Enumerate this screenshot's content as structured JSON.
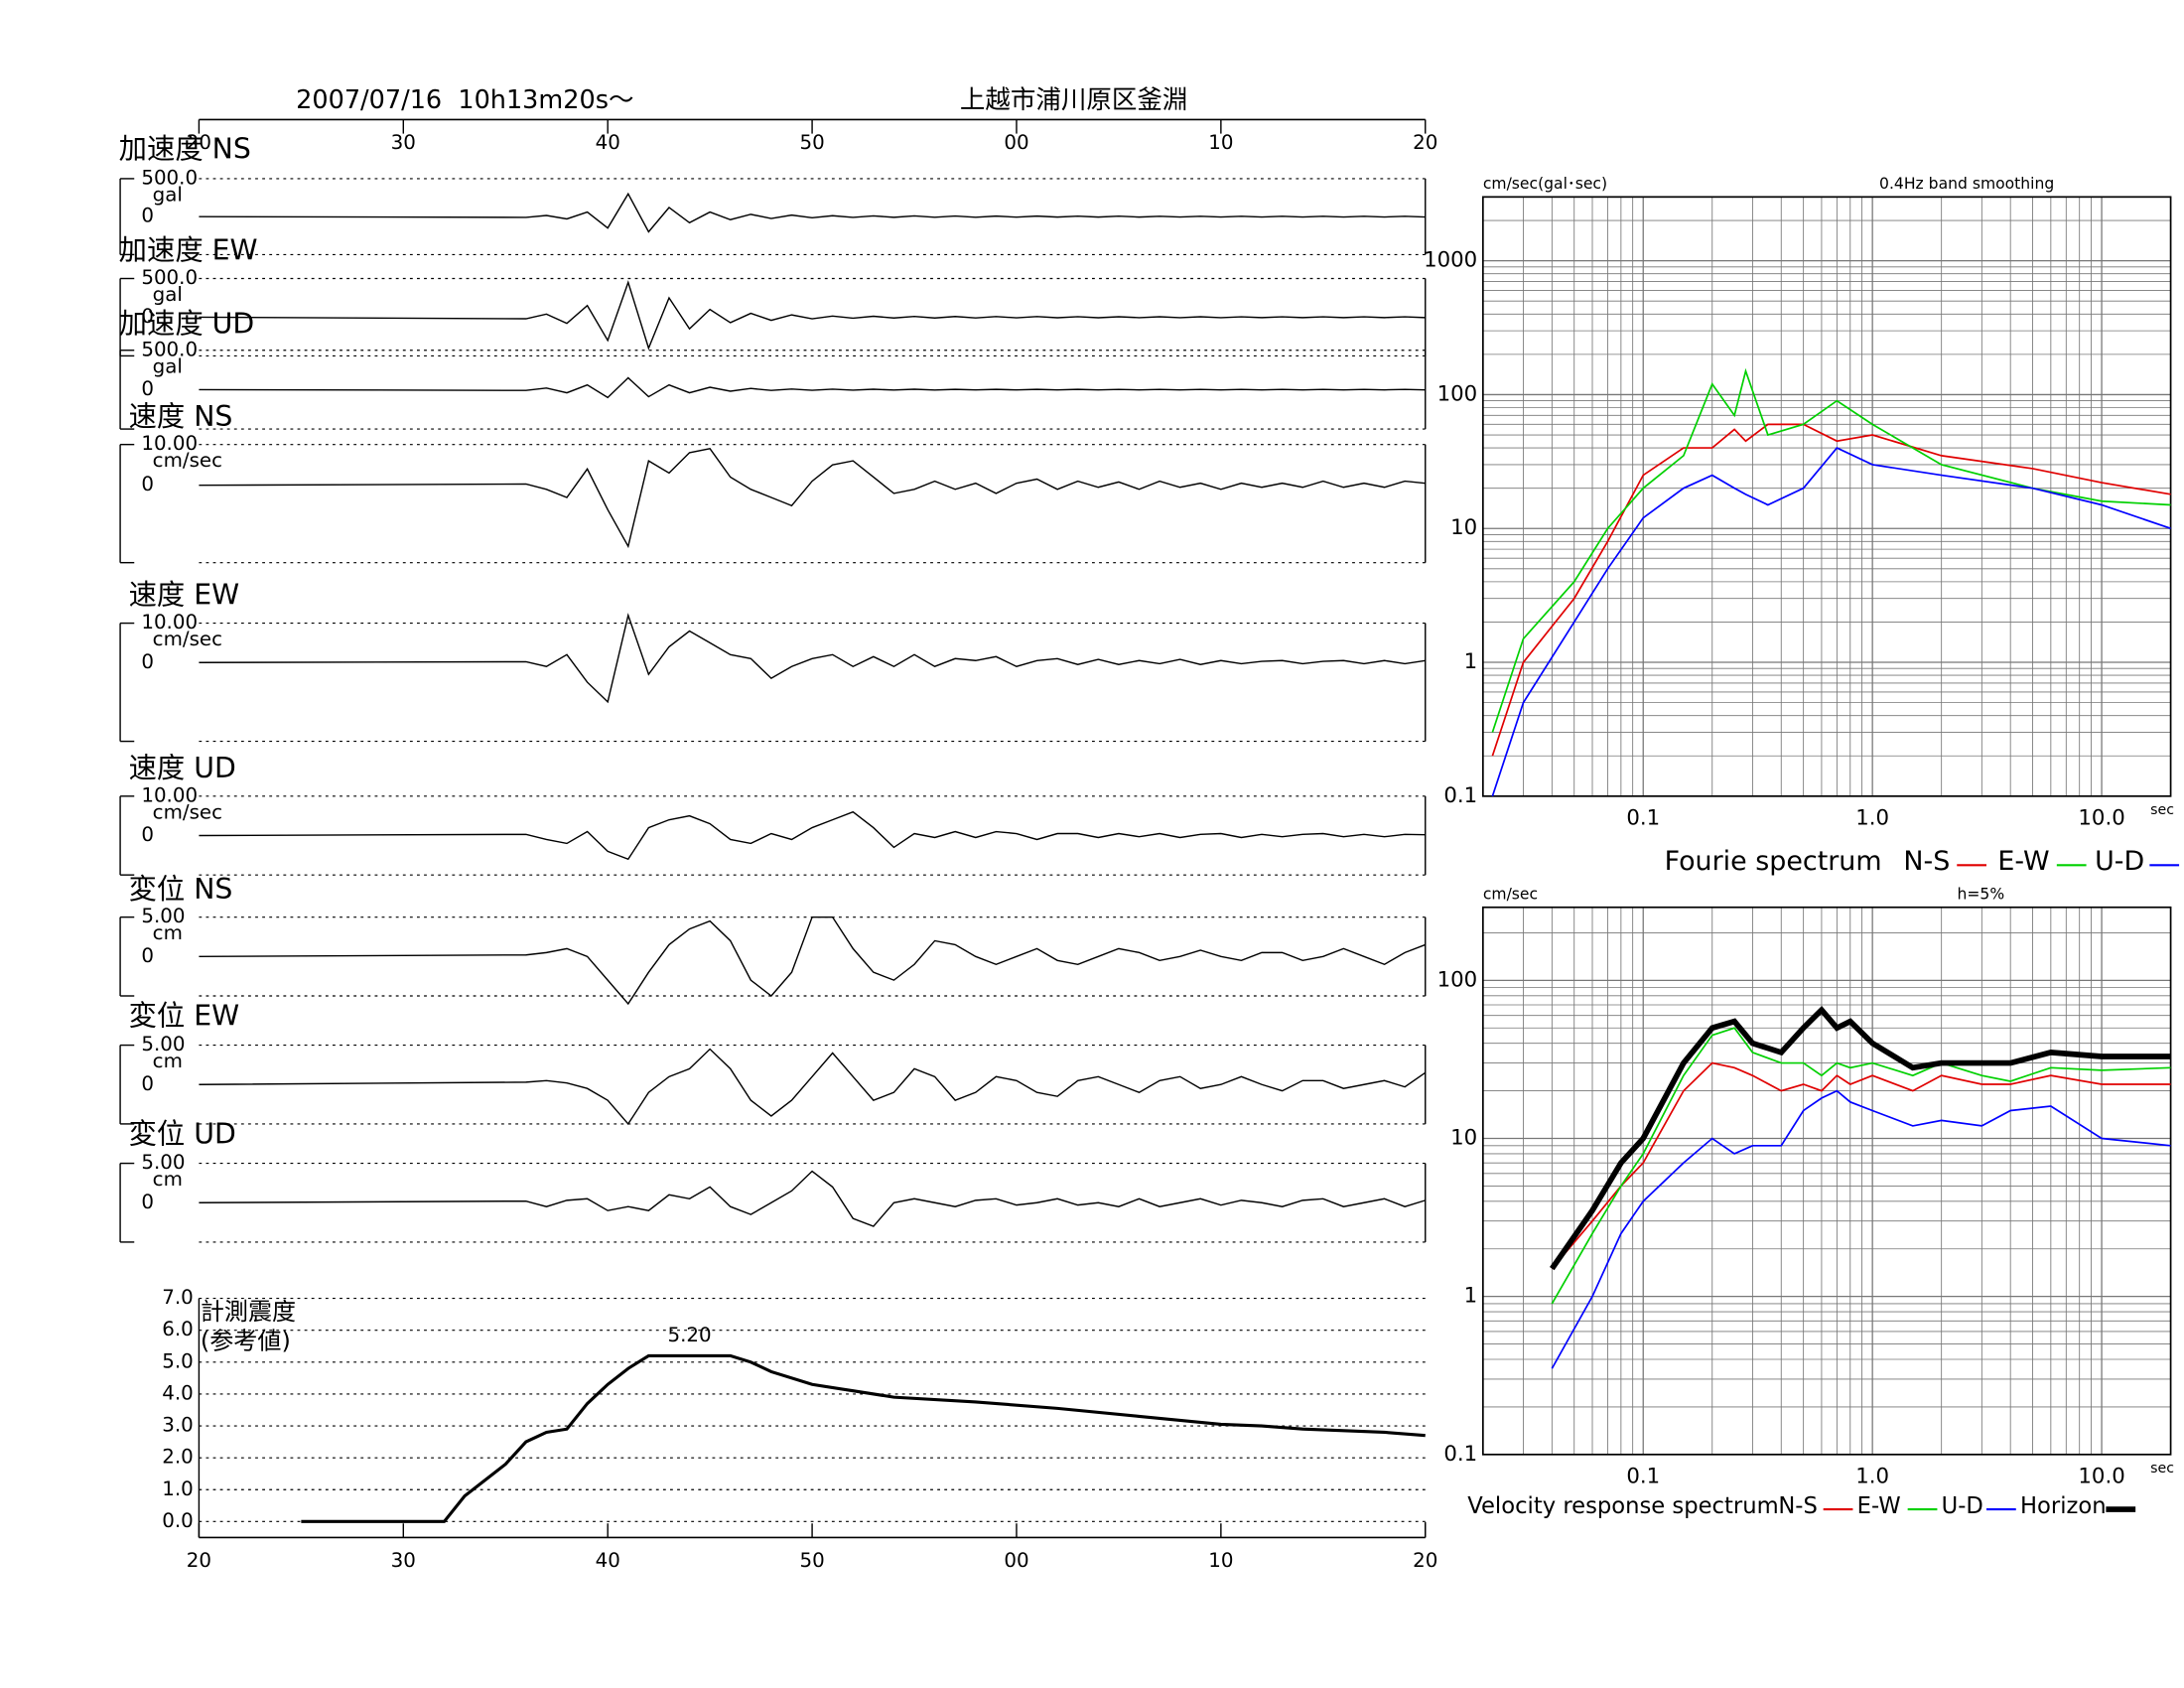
{
  "header": {
    "date": "2007/07/16  10h13m20s〜",
    "station": "上越市浦川原区釜淵"
  },
  "chart_data": [
    {
      "type": "line",
      "title": "加速度 NS",
      "unit": "gal",
      "ylim": [
        -500,
        500
      ],
      "yticks": [
        {
          "value": 500,
          "label": "500.0"
        },
        0
      ],
      "x": [
        0,
        16,
        17,
        18,
        19,
        20,
        21,
        22,
        23,
        24,
        25,
        26,
        27,
        28,
        29,
        30,
        31,
        32,
        33,
        34,
        35,
        36,
        37,
        38,
        39,
        40,
        41,
        42,
        43,
        44,
        45,
        46,
        47,
        48,
        49,
        50,
        51,
        52,
        53,
        54,
        55,
        56,
        57,
        58,
        59,
        60
      ],
      "values": [
        0,
        -10,
        15,
        -30,
        60,
        -150,
        300,
        -200,
        120,
        -80,
        60,
        -40,
        30,
        -25,
        20,
        -15,
        12,
        -10,
        10,
        -9,
        9,
        -8,
        8,
        -8,
        7,
        -7,
        7,
        -6,
        6,
        -6,
        6,
        -6,
        5,
        -5,
        5,
        -5,
        5,
        -5,
        5,
        -5,
        5,
        -5,
        5,
        -5,
        5,
        -5
      ]
    },
    {
      "type": "line",
      "title": "加速度 EW",
      "unit": "gal",
      "ylim": [
        -500,
        500
      ],
      "yticks": [
        {
          "value": 500,
          "label": "500.0"
        },
        0
      ],
      "x": [
        0,
        16,
        17,
        18,
        19,
        20,
        21,
        22,
        23,
        24,
        25,
        26,
        27,
        28,
        29,
        30,
        31,
        32,
        33,
        34,
        35,
        36,
        37,
        38,
        39,
        40,
        41,
        42,
        43,
        44,
        45,
        46,
        47,
        48,
        49,
        50,
        51,
        52,
        53,
        54,
        55,
        56,
        57,
        58,
        59,
        60
      ],
      "values": [
        0,
        -20,
        40,
        -80,
        150,
        -300,
        450,
        -400,
        250,
        -150,
        100,
        -70,
        50,
        -40,
        30,
        -20,
        15,
        -12,
        12,
        -10,
        10,
        -10,
        9,
        -9,
        8,
        -8,
        8,
        -7,
        7,
        -7,
        6,
        -6,
        6,
        -6,
        6,
        -6,
        5,
        -5,
        5,
        -5,
        5,
        -5,
        5,
        -5,
        5,
        -5
      ]
    },
    {
      "type": "line",
      "title": "加速度 UD",
      "unit": "gal",
      "ylim": [
        -500,
        500
      ],
      "yticks": [
        {
          "value": 500,
          "label": "500.0"
        },
        0
      ],
      "x": [
        0,
        16,
        17,
        18,
        19,
        20,
        21,
        22,
        23,
        24,
        25,
        26,
        27,
        28,
        29,
        30,
        31,
        32,
        33,
        34,
        35,
        36,
        37,
        38,
        39,
        40,
        41,
        42,
        43,
        44,
        45,
        46,
        47,
        48,
        49,
        50,
        51,
        52,
        53,
        54,
        55,
        56,
        57,
        58,
        59,
        60
      ],
      "values": [
        0,
        -10,
        20,
        -40,
        60,
        -100,
        150,
        -90,
        60,
        -40,
        30,
        -20,
        15,
        -10,
        8,
        -8,
        6,
        -6,
        5,
        -5,
        5,
        -5,
        4,
        -4,
        4,
        -4,
        4,
        -4,
        4,
        -4,
        3,
        -3,
        3,
        -3,
        3,
        -3,
        3,
        -3,
        3,
        -3,
        3,
        -3,
        3,
        -3,
        3,
        -3
      ]
    },
    {
      "type": "line",
      "title": "速度 NS",
      "unit": "cm/sec",
      "ylim": [
        -19,
        10
      ],
      "yticks": [
        {
          "value": 10,
          "label": "10.00"
        },
        0
      ],
      "x": [
        0,
        16,
        17,
        18,
        19,
        20,
        21,
        22,
        23,
        24,
        25,
        26,
        27,
        28,
        29,
        30,
        31,
        32,
        33,
        34,
        35,
        36,
        37,
        38,
        39,
        40,
        41,
        42,
        43,
        44,
        45,
        46,
        47,
        48,
        49,
        50,
        51,
        52,
        53,
        54,
        55,
        56,
        57,
        58,
        59,
        60
      ],
      "values": [
        0,
        0.3,
        -1,
        -3,
        4,
        -6,
        -15,
        6,
        3,
        8,
        9,
        2,
        -1,
        -3,
        -5,
        1,
        5,
        6,
        2,
        -2,
        -1,
        1,
        -1,
        0.5,
        -2,
        0.5,
        1.5,
        -1,
        1,
        -0.5,
        0.8,
        -1,
        1,
        -0.5,
        0.5,
        -1,
        0.5,
        -0.5,
        0.5,
        -0.5,
        1,
        -0.5,
        0.5,
        -0.5,
        1,
        0.5
      ]
    },
    {
      "type": "line",
      "title": "速度 EW",
      "unit": "cm/sec",
      "ylim": [
        -20,
        10
      ],
      "yticks": [
        {
          "value": 10,
          "label": "10.00"
        },
        0
      ],
      "x": [
        0,
        16,
        17,
        18,
        19,
        20,
        21,
        22,
        23,
        24,
        25,
        26,
        27,
        28,
        29,
        30,
        31,
        32,
        33,
        34,
        35,
        36,
        37,
        38,
        39,
        40,
        41,
        42,
        43,
        44,
        45,
        46,
        47,
        48,
        49,
        50,
        51,
        52,
        53,
        54,
        55,
        56,
        57,
        58,
        59,
        60
      ],
      "values": [
        0,
        0.2,
        -1,
        2,
        -5,
        -10,
        12,
        -3,
        4,
        8,
        5,
        2,
        1,
        -4,
        -1,
        1,
        2,
        -1,
        1.5,
        -1,
        2,
        -1,
        1,
        0.5,
        1.5,
        -1,
        0.5,
        1,
        -0.5,
        0.8,
        -0.5,
        0.5,
        -0.3,
        0.8,
        -0.5,
        0.5,
        -0.3,
        0.3,
        0.5,
        -0.3,
        0.3,
        0.5,
        -0.3,
        0.5,
        -0.3,
        0.5
      ]
    },
    {
      "type": "line",
      "title": "速度 UD",
      "unit": "cm/sec",
      "ylim": [
        -10,
        10
      ],
      "yticks": [
        {
          "value": 10,
          "label": "10.00"
        },
        0
      ],
      "x": [
        0,
        16,
        17,
        18,
        19,
        20,
        21,
        22,
        23,
        24,
        25,
        26,
        27,
        28,
        29,
        30,
        31,
        32,
        33,
        34,
        35,
        36,
        37,
        38,
        39,
        40,
        41,
        42,
        43,
        44,
        45,
        46,
        47,
        48,
        49,
        50,
        51,
        52,
        53,
        54,
        55,
        56,
        57,
        58,
        59,
        60
      ],
      "values": [
        0,
        0.3,
        -1,
        -2,
        1,
        -4,
        -6,
        2,
        4,
        5,
        3,
        -1,
        -2,
        0.5,
        -1,
        2,
        4,
        6,
        2,
        -3,
        0.5,
        -0.5,
        1,
        -0.5,
        1,
        0.5,
        -1,
        0.5,
        0.5,
        -0.5,
        0.5,
        -0.3,
        0.5,
        -0.5,
        0.3,
        0.5,
        -0.5,
        0.3,
        -0.3,
        0.3,
        0.5,
        -0.3,
        0.3,
        -0.3,
        0.3,
        0.2
      ]
    },
    {
      "type": "line",
      "title": "変位 NS",
      "unit": "cm",
      "ylim": [
        -5,
        5
      ],
      "yticks": [
        {
          "value": 5,
          "label": "5.00"
        },
        0
      ],
      "x": [
        0,
        16,
        17,
        18,
        19,
        20,
        21,
        22,
        23,
        24,
        25,
        26,
        27,
        28,
        29,
        30,
        31,
        32,
        33,
        34,
        35,
        36,
        37,
        38,
        39,
        40,
        41,
        42,
        43,
        44,
        45,
        46,
        47,
        48,
        49,
        50,
        51,
        52,
        53,
        54,
        55,
        56,
        57,
        58,
        59,
        60
      ],
      "values": [
        0,
        0.2,
        0.5,
        1,
        0,
        -3,
        -6,
        -2,
        1.5,
        3.5,
        4.5,
        2,
        -3,
        -5,
        -2,
        5,
        5,
        1,
        -2,
        -3,
        -1,
        2,
        1.5,
        0,
        -1,
        0,
        1,
        -0.5,
        -1,
        0,
        1,
        0.5,
        -0.5,
        0,
        0.8,
        0,
        -0.5,
        0.5,
        0.5,
        -0.5,
        0,
        1,
        0,
        -1,
        0.5,
        1.5
      ]
    },
    {
      "type": "line",
      "title": "変位 EW",
      "unit": "cm",
      "ylim": [
        -5,
        5
      ],
      "yticks": [
        {
          "value": 5,
          "label": "5.00"
        },
        0
      ],
      "x": [
        0,
        16,
        17,
        18,
        19,
        20,
        21,
        22,
        23,
        24,
        25,
        26,
        27,
        28,
        29,
        30,
        31,
        32,
        33,
        34,
        35,
        36,
        37,
        38,
        39,
        40,
        41,
        42,
        43,
        44,
        45,
        46,
        47,
        48,
        49,
        50,
        51,
        52,
        53,
        54,
        55,
        56,
        57,
        58,
        59,
        60
      ],
      "values": [
        0,
        0.3,
        0.5,
        0.2,
        -0.5,
        -2,
        -5,
        -1,
        1,
        2,
        4.5,
        2,
        -2,
        -4,
        -2,
        1,
        4,
        1,
        -2,
        -1,
        2,
        1,
        -2,
        -1,
        1,
        0.5,
        -1,
        -1.5,
        0.5,
        1,
        0,
        -1,
        0.5,
        1,
        -0.5,
        0,
        1,
        0,
        -0.8,
        0.5,
        0.5,
        -0.5,
        0,
        0.5,
        -0.3,
        1.5
      ]
    },
    {
      "type": "line",
      "title": "変位 UD",
      "unit": "cm",
      "ylim": [
        -5,
        5
      ],
      "yticks": [
        {
          "value": 5,
          "label": "5.00"
        },
        0
      ],
      "x": [
        0,
        16,
        17,
        18,
        19,
        20,
        21,
        22,
        23,
        24,
        25,
        26,
        27,
        28,
        29,
        30,
        31,
        32,
        33,
        34,
        35,
        36,
        37,
        38,
        39,
        40,
        41,
        42,
        43,
        44,
        45,
        46,
        47,
        48,
        49,
        50,
        51,
        52,
        53,
        54,
        55,
        56,
        57,
        58,
        59,
        60
      ],
      "values": [
        0,
        0.2,
        -0.5,
        0.3,
        0.5,
        -1,
        -0.5,
        -1,
        1,
        0.5,
        2,
        -0.5,
        -1.5,
        0,
        1.5,
        4,
        2,
        -2,
        -3,
        0,
        0.5,
        0,
        -0.5,
        0.3,
        0.5,
        -0.3,
        0,
        0.5,
        -0.3,
        0,
        -0.5,
        0.5,
        -0.5,
        0,
        0.5,
        -0.3,
        0.3,
        0,
        -0.5,
        0.3,
        0.5,
        -0.5,
        0,
        0.5,
        -0.5,
        0.3
      ]
    },
    {
      "type": "line",
      "title": "計測震度",
      "subtitle": "(参考値)",
      "peak_label": "5.20",
      "xlim": [
        0,
        60
      ],
      "xticks": [
        {
          "value": 0,
          "label": "20"
        },
        {
          "value": 10,
          "label": "30"
        },
        {
          "value": 20,
          "label": "40"
        },
        {
          "value": 30,
          "label": "50"
        },
        {
          "value": 40,
          "label": "00"
        },
        {
          "value": 50,
          "label": "10"
        },
        {
          "value": 60,
          "label": "20"
        }
      ],
      "ylim": [
        -0.5,
        7
      ],
      "yticks": [
        {
          "value": 0,
          "label": "0.0"
        },
        {
          "value": 1,
          "label": "1.0"
        },
        {
          "value": 2,
          "label": "2.0"
        },
        {
          "value": 3,
          "label": "3.0"
        },
        {
          "value": 4,
          "label": "4.0"
        },
        {
          "value": 5,
          "label": "5.0"
        },
        {
          "value": 6,
          "label": "6.0"
        },
        {
          "value": 7,
          "label": "7.0"
        }
      ],
      "x": [
        5,
        12,
        13,
        14,
        15,
        16,
        17,
        18,
        19,
        20,
        21,
        22,
        26,
        27,
        28,
        30,
        32,
        34,
        38,
        42,
        46,
        50,
        52,
        54,
        56,
        58,
        60
      ],
      "values": [
        0,
        0,
        0.8,
        1.3,
        1.8,
        2.5,
        2.8,
        2.9,
        3.7,
        4.3,
        4.8,
        5.2,
        5.2,
        5.0,
        4.7,
        4.3,
        4.1,
        3.9,
        3.75,
        3.55,
        3.3,
        3.05,
        3.0,
        2.9,
        2.85,
        2.8,
        2.7
      ]
    },
    {
      "type": "line",
      "log": true,
      "title": "Fourie spectrum",
      "ylabel": "cm/sec(gal･sec)",
      "annotation": "0.4Hz band smoothing",
      "xlabel": "sec",
      "xlim": [
        0.02,
        20
      ],
      "xticks": [
        0.1,
        {
          "value": 1,
          "label": "1.0"
        },
        {
          "value": 10,
          "label": "10.0"
        }
      ],
      "ylim": [
        0.1,
        3000
      ],
      "yticks": [
        0.1,
        1,
        10,
        100,
        1000
      ],
      "x": [
        0.022,
        0.03,
        0.05,
        0.07,
        0.1,
        0.15,
        0.2,
        0.25,
        0.28,
        0.35,
        0.5,
        0.7,
        1,
        2,
        5,
        10,
        20
      ],
      "series": [
        {
          "name": "N-S",
          "color": "#e00000",
          "values": [
            0.2,
            1,
            3,
            8,
            25,
            40,
            40,
            55,
            45,
            60,
            60,
            45,
            50,
            35,
            28,
            22,
            18
          ]
        },
        {
          "name": "E-W",
          "color": "#00d000",
          "values": [
            0.3,
            1.5,
            4,
            10,
            20,
            35,
            120,
            70,
            150,
            50,
            60,
            90,
            60,
            30,
            20,
            16,
            15
          ]
        },
        {
          "name": "U-D",
          "color": "#0000ff",
          "values": [
            0.1,
            0.5,
            2,
            5,
            12,
            20,
            25,
            20,
            18,
            15,
            20,
            40,
            30,
            25,
            20,
            15,
            10
          ]
        }
      ]
    },
    {
      "type": "line",
      "log": true,
      "title": "Velocity response spectrum",
      "ylabel": "cm/sec",
      "annotation": "h=5%",
      "xlabel": "sec",
      "xlim": [
        0.02,
        20
      ],
      "xticks": [
        0.1,
        {
          "value": 1,
          "label": "1.0"
        },
        {
          "value": 10,
          "label": "10.0"
        }
      ],
      "ylim": [
        0.1,
        290
      ],
      "yticks": [
        0.1,
        1,
        10,
        100
      ],
      "x": [
        0.04,
        0.06,
        0.08,
        0.1,
        0.15,
        0.2,
        0.25,
        0.3,
        0.4,
        0.5,
        0.6,
        0.7,
        0.8,
        1,
        1.5,
        2,
        3,
        4,
        6,
        10,
        20
      ],
      "series": [
        {
          "name": "N-S",
          "color": "#e00000",
          "values": [
            1.5,
            3,
            5,
            7,
            20,
            30,
            28,
            25,
            20,
            22,
            20,
            25,
            22,
            25,
            20,
            25,
            22,
            22,
            25,
            22,
            22
          ]
        },
        {
          "name": "E-W",
          "color": "#00d000",
          "values": [
            0.9,
            2.5,
            5,
            8,
            25,
            45,
            50,
            35,
            30,
            30,
            25,
            30,
            28,
            30,
            25,
            30,
            25,
            23,
            28,
            27,
            28
          ]
        },
        {
          "name": "U-D",
          "color": "#0000ff",
          "values": [
            0.35,
            1,
            2.5,
            4,
            7,
            10,
            8,
            9,
            9,
            15,
            18,
            20,
            17,
            15,
            12,
            13,
            12,
            15,
            16,
            10,
            9
          ]
        },
        {
          "name": "Horizon",
          "color": "#000000",
          "values": [
            1.5,
            3.5,
            7,
            10,
            30,
            50,
            55,
            40,
            35,
            50,
            65,
            50,
            55,
            40,
            28,
            30,
            30,
            30,
            35,
            33,
            33
          ]
        }
      ]
    }
  ]
}
